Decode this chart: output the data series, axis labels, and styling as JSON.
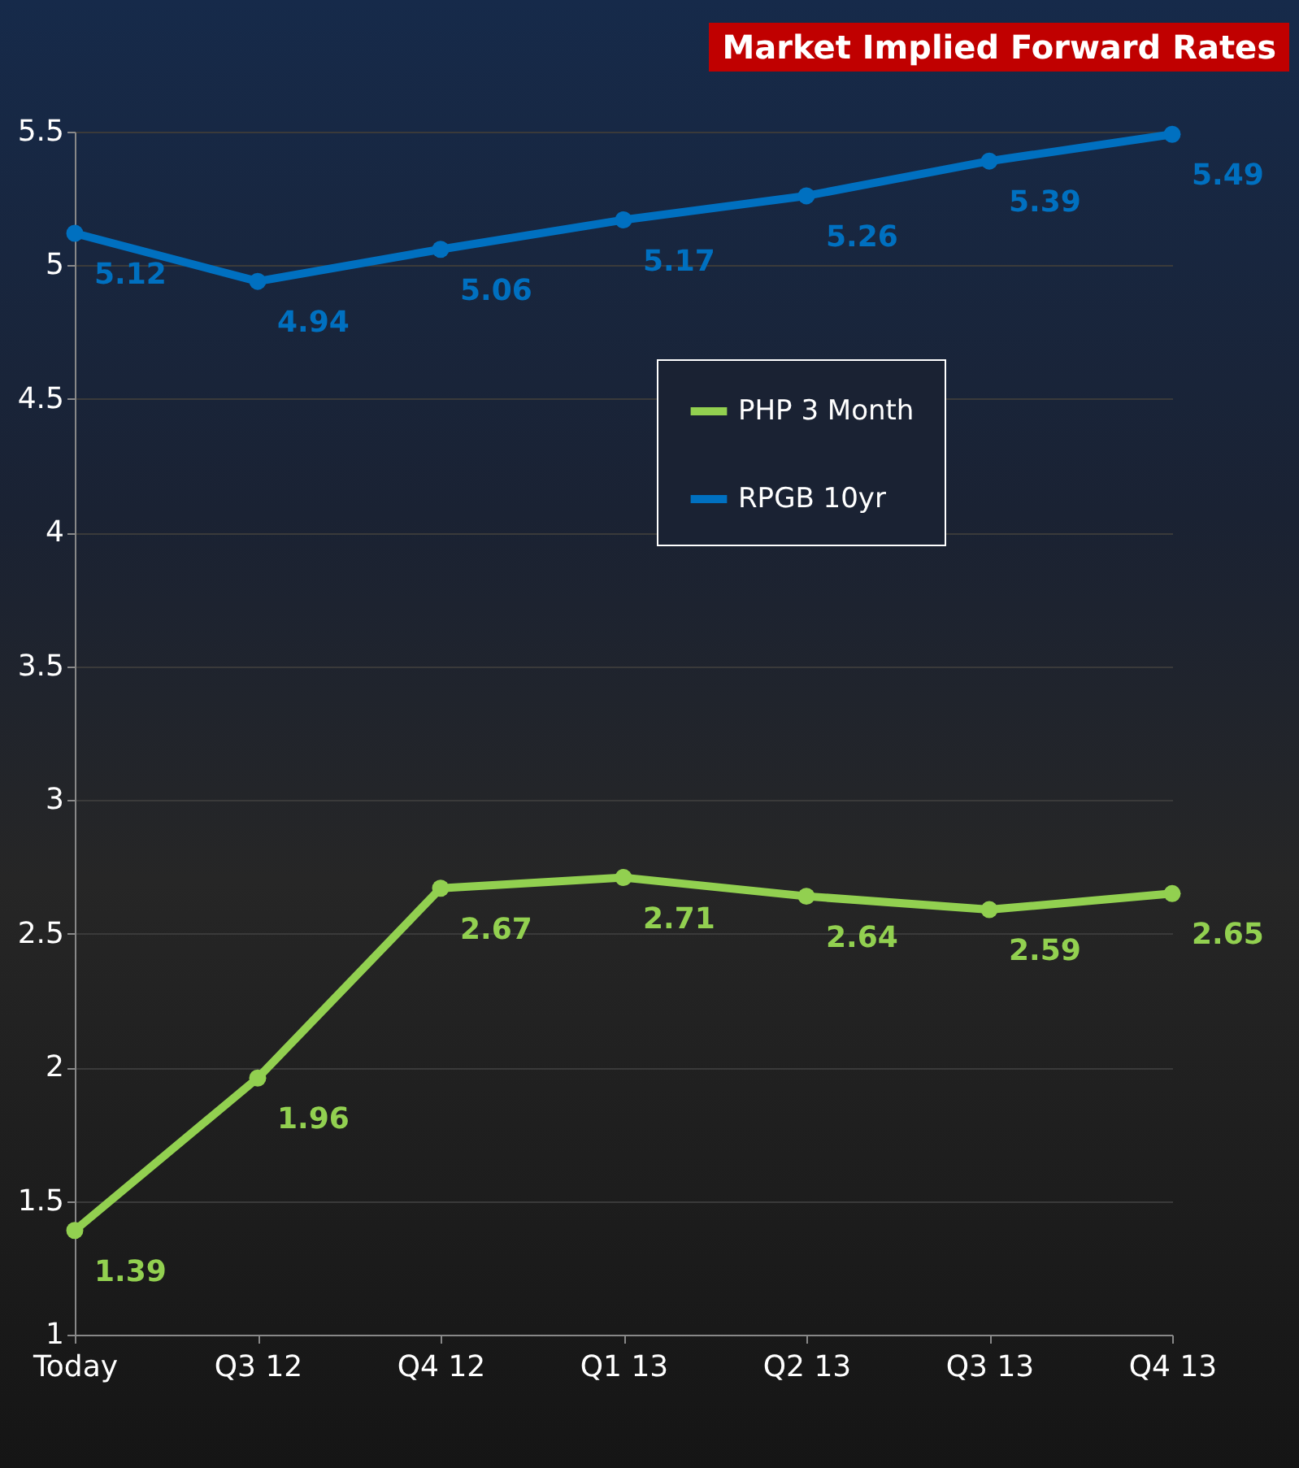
{
  "chart_data": {
    "type": "line",
    "title": "Market Implied Forward Rates",
    "categories": [
      "Today",
      "Q3 12",
      "Q4 12",
      "Q1 13",
      "Q2 13",
      "Q3 13",
      "Q4 13"
    ],
    "series": [
      {
        "name": "PHP 3 Month",
        "color": "#92d050",
        "values": [
          1.39,
          1.96,
          2.67,
          2.71,
          2.64,
          2.59,
          2.65
        ]
      },
      {
        "name": "RPGB 10yr",
        "color": "#0070c0",
        "values": [
          5.12,
          4.94,
          5.06,
          5.17,
          5.26,
          5.39,
          5.49
        ]
      }
    ],
    "ylim": [
      1,
      5.5
    ],
    "yticks": [
      1,
      1.5,
      2,
      2.5,
      3,
      3.5,
      4,
      4.5,
      5,
      5.5
    ],
    "grid": "y",
    "legend": "top right",
    "marker": "circle",
    "line_style": "solid",
    "data_labels": true
  }
}
